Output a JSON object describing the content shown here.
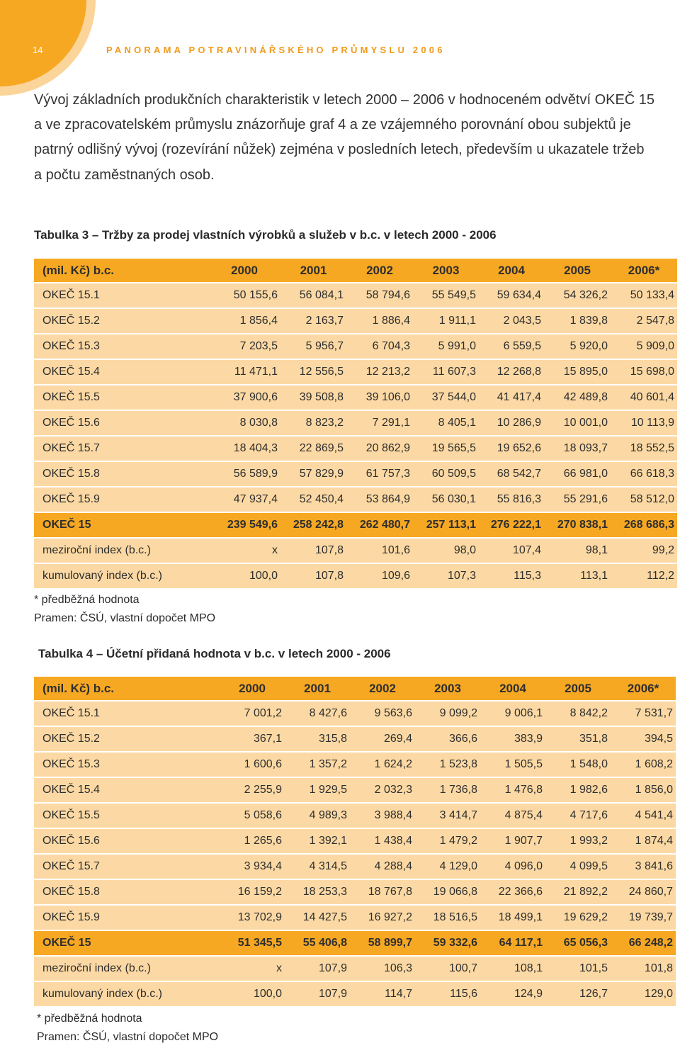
{
  "header": {
    "page_number": "14",
    "title": "PANORAMA POTRAVINÁŘSKÉHO PRŮMYSLU 2006"
  },
  "intro_lines": [
    "Vývoj základních produkčních charakteristik v letech 2000 – 2006 v hodnoceném odvětví OKEČ 15",
    "a ve zpracovatelském průmyslu znázorňuje graf 4 a ze vzájemného porovnání obou subjektů je",
    "patrný odlišný vývoj (rozevírání nůžek) zejména v posledních letech, především u ukazatele tržeb",
    "a počtu zaměstnaných osob."
  ],
  "tables": [
    {
      "caption": "Tabulka 3 – Tržby za prodej vlastních výrobků a služeb v b.c. v letech 2000 - 2006",
      "columns": [
        "(mil. Kč) b.c.",
        "2000",
        "2001",
        "2002",
        "2003",
        "2004",
        "2005",
        "2006*"
      ],
      "rows": [
        [
          "OKEČ 15.1",
          "50 155,6",
          "56 084,1",
          "58 794,6",
          "55 549,5",
          "59 634,4",
          "54 326,2",
          "50 133,4"
        ],
        [
          "OKEČ 15.2",
          "1 856,4",
          "2 163,7",
          "1 886,4",
          "1 911,1",
          "2 043,5",
          "1 839,8",
          "2 547,8"
        ],
        [
          "OKEČ 15.3",
          "7 203,5",
          "5 956,7",
          "6 704,3",
          "5 991,0",
          "6 559,5",
          "5 920,0",
          "5 909,0"
        ],
        [
          "OKEČ 15.4",
          "11 471,1",
          "12 556,5",
          "12 213,2",
          "11 607,3",
          "12 268,8",
          "15 895,0",
          "15 698,0"
        ],
        [
          "OKEČ 15.5",
          "37 900,6",
          "39 508,8",
          "39 106,0",
          "37 544,0",
          "41 417,4",
          "42 489,8",
          "40 601,4"
        ],
        [
          "OKEČ 15.6",
          "8 030,8",
          "8 823,2",
          "7 291,1",
          "8 405,1",
          "10 286,9",
          "10 001,0",
          "10 113,9"
        ],
        [
          "OKEČ 15.7",
          "18 404,3",
          "22 869,5",
          "20 862,9",
          "19 565,5",
          "19 652,6",
          "18 093,7",
          "18 552,5"
        ],
        [
          "OKEČ 15.8",
          "56 589,9",
          "57 829,9",
          "61 757,3",
          "60 509,5",
          "68 542,7",
          "66 981,0",
          "66 618,3"
        ],
        [
          "OKEČ 15.9",
          "47 937,4",
          "52 450,4",
          "53 864,9",
          "56 030,1",
          "55 816,3",
          "55 291,6",
          "58 512,0"
        ],
        [
          "OKEČ 15",
          "239 549,6",
          "258 242,8",
          "262 480,7",
          "257 113,1",
          "276 222,1",
          "270 838,1",
          "268 686,3"
        ],
        [
          "meziroční index (b.c.)",
          "x",
          "107,8",
          "101,6",
          "98,0",
          "107,4",
          "98,1",
          "99,2"
        ],
        [
          "kumulovaný index (b.c.)",
          "100,0",
          "107,8",
          "109,6",
          "107,3",
          "115,3",
          "113,1",
          "112,2"
        ]
      ],
      "notes": [
        "* předběžná hodnota",
        "Pramen: ČSÚ, vlastní dopočet MPO"
      ]
    },
    {
      "caption": "Tabulka 4 – Účetní přidaná hodnota v b.c. v letech 2000 - 2006",
      "columns": [
        "(mil. Kč) b.c.",
        "2000",
        "2001",
        "2002",
        "2003",
        "2004",
        "2005",
        "2006*"
      ],
      "rows": [
        [
          "OKEČ 15.1",
          "7 001,2",
          "8 427,6",
          "9 563,6",
          "9 099,2",
          "9 006,1",
          "8 842,2",
          "7 531,7"
        ],
        [
          "OKEČ 15.2",
          "367,1",
          "315,8",
          "269,4",
          "366,6",
          "383,9",
          "351,8",
          "394,5"
        ],
        [
          "OKEČ 15.3",
          "1 600,6",
          "1 357,2",
          "1 624,2",
          "1 523,8",
          "1 505,5",
          "1 548,0",
          "1 608,2"
        ],
        [
          "OKEČ 15.4",
          "2 255,9",
          "1 929,5",
          "2 032,3",
          "1 736,8",
          "1 476,8",
          "1 982,6",
          "1 856,0"
        ],
        [
          "OKEČ 15.5",
          "5 058,6",
          "4 989,3",
          "3 988,4",
          "3 414,7",
          "4 875,4",
          "4 717,6",
          "4 541,4"
        ],
        [
          "OKEČ 15.6",
          "1 265,6",
          "1 392,1",
          "1 438,4",
          "1 479,2",
          "1 907,7",
          "1 993,2",
          "1 874,4"
        ],
        [
          "OKEČ 15.7",
          "3 934,4",
          "4 314,5",
          "4 288,4",
          "4 129,0",
          "4 096,0",
          "4 099,5",
          "3 841,6"
        ],
        [
          "OKEČ 15.8",
          "16 159,2",
          "18 253,3",
          "18 767,8",
          "19 066,8",
          "22 366,6",
          "21 892,2",
          "24 860,7"
        ],
        [
          "OKEČ 15.9",
          "13 702,9",
          "14 427,5",
          "16 927,2",
          "18 516,5",
          "18 499,1",
          "19 629,2",
          "19 739,7"
        ],
        [
          "OKEČ 15",
          "51 345,5",
          "55 406,8",
          "58 899,7",
          "59 332,6",
          "64 117,1",
          "65 056,3",
          "66 248,2"
        ],
        [
          "meziroční index (b.c.)",
          "x",
          "107,9",
          "106,3",
          "100,7",
          "108,1",
          "101,5",
          "101,8"
        ],
        [
          "kumulovaný index (b.c.)",
          "100,0",
          "107,9",
          "114,7",
          "115,6",
          "124,9",
          "126,7",
          "129,0"
        ]
      ],
      "notes": [
        "* předběžná hodnota",
        "Pramen: ČSÚ, vlastní dopočet MPO"
      ]
    }
  ]
}
